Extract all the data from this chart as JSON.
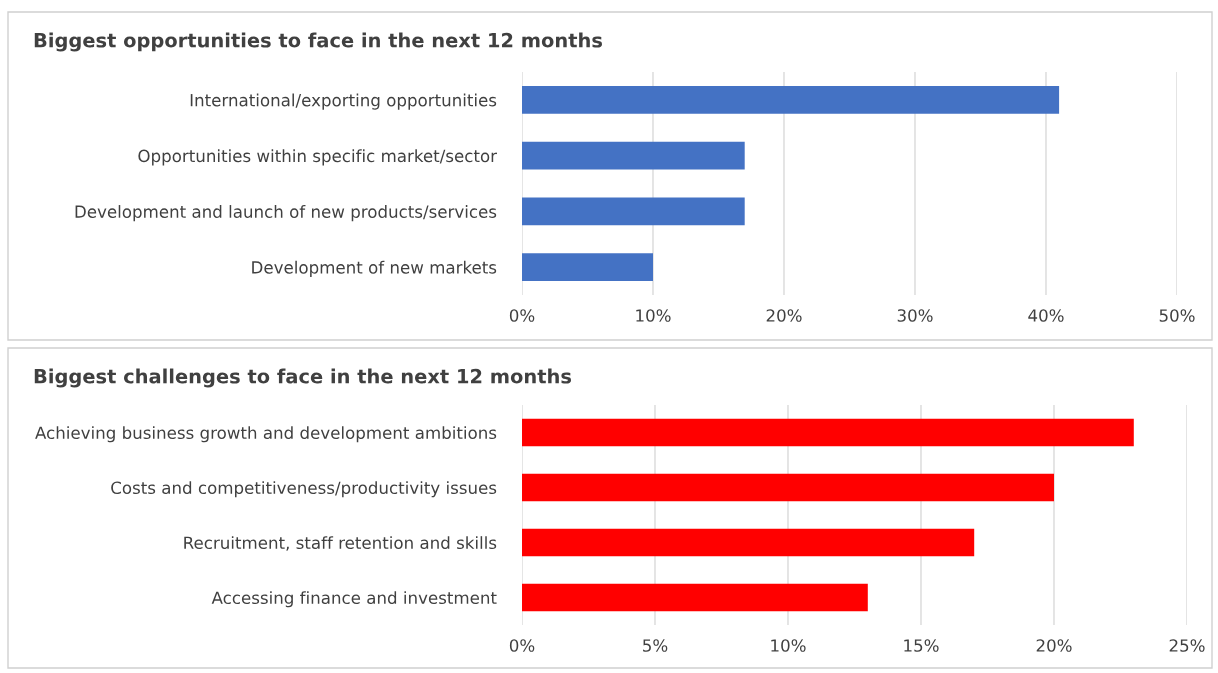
{
  "chart_data": [
    {
      "type": "bar",
      "orientation": "horizontal",
      "title": "Biggest opportunities to face in the next 12 months",
      "categories": [
        "International/exporting opportunities",
        "Opportunities within specific market/sector",
        "Development and launch of new products/services",
        "Development of new markets"
      ],
      "values": [
        41,
        17,
        17,
        10
      ],
      "color": "#4472c4",
      "xlim": [
        0,
        50
      ],
      "xticks": [
        {
          "value": 0,
          "label": "0%"
        },
        {
          "value": 10,
          "label": "10%"
        },
        {
          "value": 20,
          "label": "20%"
        },
        {
          "value": 30,
          "label": "30%"
        },
        {
          "value": 40,
          "label": "40%"
        },
        {
          "value": 50,
          "label": "50%"
        }
      ],
      "grid": "x",
      "legend": false
    },
    {
      "type": "bar",
      "orientation": "horizontal",
      "title": "Biggest challenges to face in the next 12 months",
      "categories": [
        "Achieving business growth and development ambitions",
        "Costs and competitiveness/productivity issues",
        "Recruitment, staff retention and skills",
        "Accessing finance and investment"
      ],
      "values": [
        23,
        20,
        17,
        13
      ],
      "color": "#ff0000",
      "xlim": [
        0,
        25
      ],
      "xticks": [
        {
          "value": 0,
          "label": "0%"
        },
        {
          "value": 5,
          "label": "5%"
        },
        {
          "value": 10,
          "label": "10%"
        },
        {
          "value": 15,
          "label": "15%"
        },
        {
          "value": 20,
          "label": "20%"
        },
        {
          "value": 25,
          "label": "25%"
        }
      ],
      "grid": "x",
      "legend": false
    }
  ]
}
